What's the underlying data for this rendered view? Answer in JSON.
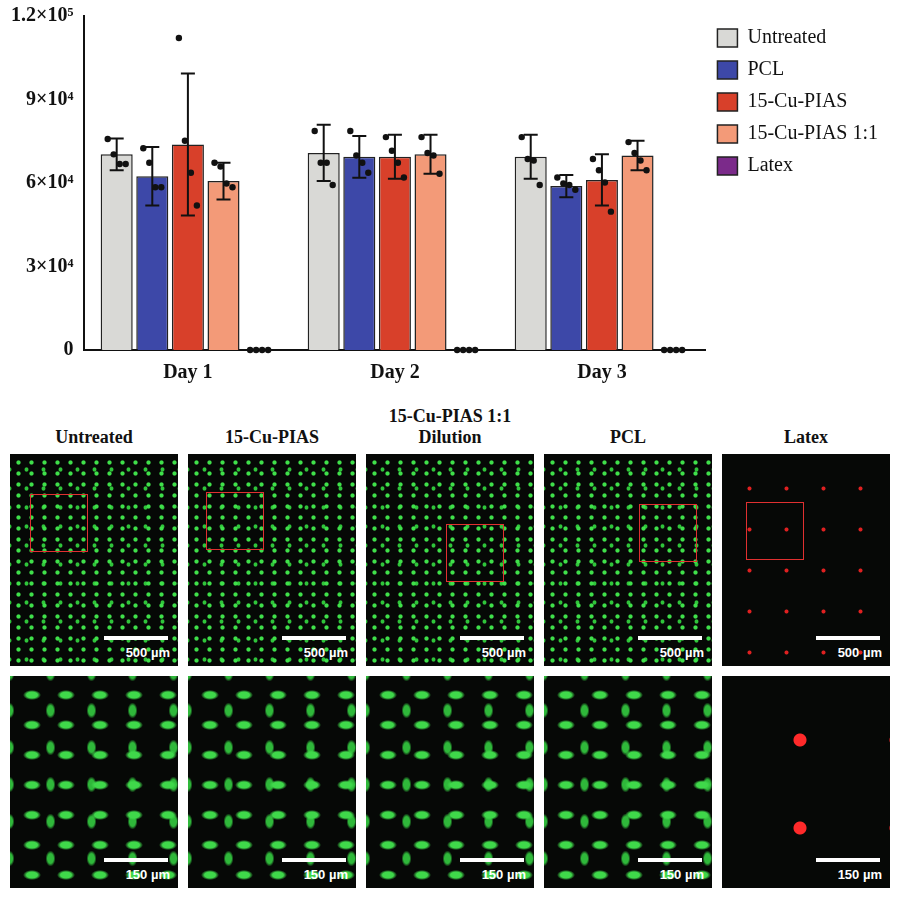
{
  "chart_data": {
    "type": "bar",
    "categories": [
      "Day 1",
      "Day 2",
      "Day 3"
    ],
    "ylim": [
      0,
      120000
    ],
    "yticks": [
      0,
      {
        "value": 30000,
        "label": "3×10⁴"
      },
      {
        "value": 60000,
        "label": "6×10⁴"
      },
      {
        "value": 90000,
        "label": "9×10⁴"
      },
      {
        "value": 120000,
        "label": "1.2×10⁵"
      }
    ],
    "grid": false,
    "legend": "right",
    "series": [
      {
        "name": "Untreated",
        "color": "#d9d9d6",
        "values": [
          70300,
          70800,
          69400
        ],
        "error": [
          5700,
          10100,
          7900
        ],
        "points": [
          [
            75800,
            70300,
            66800,
            66800
          ],
          [
            78700,
            67300,
            67300,
            59300
          ],
          [
            76500,
            68600,
            68100,
            59300
          ]
        ]
      },
      {
        "name": "PCL",
        "color": "#3d48a8",
        "values": [
          62400,
          69400,
          58900
        ],
        "error": [
          10500,
          7500,
          4000
        ],
        "points": [
          [
            72500,
            67300,
            58500,
            58500
          ],
          [
            78700,
            69900,
            67300,
            63700
          ],
          [
            62000,
            59800,
            59300,
            57600
          ]
        ]
      },
      {
        "name": "15-Cu-PIAS",
        "color": "#d8402a",
        "values": [
          73800,
          69400,
          61100
        ],
        "error": [
          25500,
          7900,
          9200
        ],
        "points": [
          [
            112100,
            75200,
            63700,
            51900
          ],
          [
            76500,
            71600,
            67300,
            62000
          ],
          [
            68600,
            64600,
            60200,
            49700
          ]
        ]
      },
      {
        "name": "15-Cu-PIAS 1:1",
        "color": "#f39a78",
        "values": [
          60700,
          70300,
          69900
        ],
        "error": [
          6600,
          7000,
          5300
        ],
        "points": [
          [
            67300,
            65900,
            59800,
            58500
          ],
          [
            76500,
            70800,
            69900,
            63300
          ],
          [
            74700,
            70800,
            68100,
            64600
          ]
        ]
      },
      {
        "name": "Latex",
        "color": "#7b2a8a",
        "values": [
          0,
          0,
          0
        ],
        "error": [
          0,
          0,
          0
        ],
        "points": [
          [
            0,
            0,
            0,
            0
          ],
          [
            0,
            0,
            0,
            0
          ],
          [
            0,
            0,
            0,
            0
          ]
        ]
      }
    ]
  },
  "image_panels": {
    "columns": [
      "Untreated",
      "15-Cu-PIAS",
      "15-Cu-PIAS 1:1 Dilution",
      "PCL",
      "Latex"
    ],
    "rows": [
      {
        "scale_bar": "500 µm"
      },
      {
        "scale_bar": "150 µm"
      }
    ]
  }
}
